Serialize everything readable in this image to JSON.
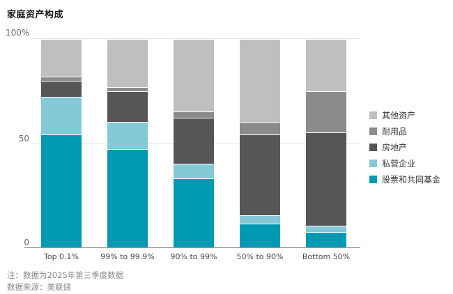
{
  "title": "家庭资产构成",
  "y_axis": {
    "top": "100%",
    "mid": "50",
    "bottom": "0"
  },
  "notes": {
    "line1": "注：数据为2025年第三季度数据",
    "line2": "数据来源：美联储"
  },
  "legend": [
    {
      "label": "其他资产",
      "color": "#bfbfbf"
    },
    {
      "label": "耐用品",
      "color": "#8b8b8b"
    },
    {
      "label": "房地产",
      "color": "#565656"
    },
    {
      "label": "私营企业",
      "color": "#85c8d8"
    },
    {
      "label": "股票和共同基金",
      "color": "#0099b3"
    }
  ],
  "chart_data": {
    "type": "bar",
    "stacked": true,
    "unit": "percent",
    "title": "家庭资产构成",
    "categories": [
      "Top 0.1%",
      "99% to 99.9%",
      "90% to 99%",
      "50% to 90%",
      "Bottom 50%"
    ],
    "series": [
      {
        "name": "股票和共同基金",
        "color": "#0099b3",
        "values": [
          54,
          47,
          33,
          11,
          7
        ]
      },
      {
        "name": "私营企业",
        "color": "#85c8d8",
        "values": [
          18,
          13,
          7,
          4,
          3
        ]
      },
      {
        "name": "房地产",
        "color": "#565656",
        "values": [
          8,
          15,
          22,
          39,
          45
        ]
      },
      {
        "name": "耐用品",
        "color": "#8b8b8b",
        "values": [
          2,
          2,
          3,
          6,
          20
        ]
      },
      {
        "name": "其他资产",
        "color": "#bfbfbf",
        "values": [
          18,
          23,
          35,
          40,
          25
        ]
      }
    ],
    "stack_order": "first series at bottom",
    "ylim": [
      0,
      100
    ],
    "yticks": [
      "0",
      "50",
      "100%"
    ],
    "grid": true,
    "legend_position": "right",
    "note": "注：数据为2025年第三季度数据",
    "source": "数据来源：美联储"
  }
}
